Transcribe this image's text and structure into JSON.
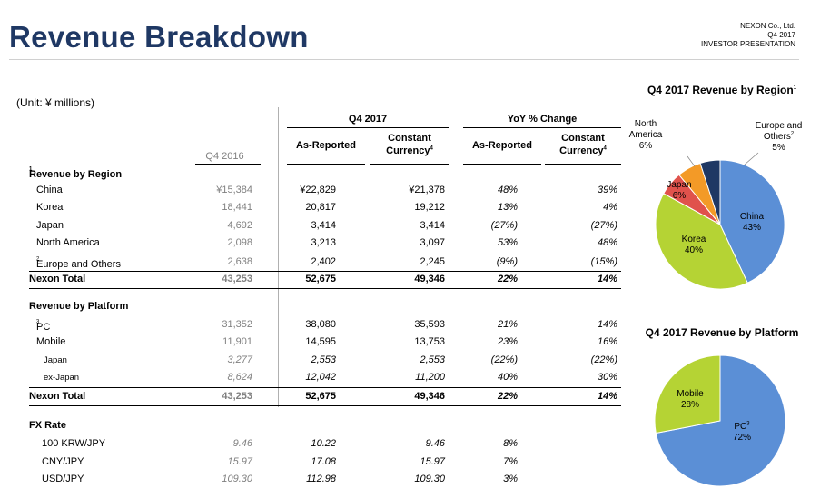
{
  "header": {
    "title": "Revenue Breakdown",
    "company": "NEXON Co., Ltd.",
    "period": "Q4 2017",
    "doc": "INVESTOR PRESENTATION"
  },
  "unit": "(Unit: ¥ millions)",
  "table": {
    "group1": "Q4 2017",
    "group2": "YoY % Change",
    "col_q4_2016": "Q4 2016",
    "col_as_reported": "As-Reported",
    "col_constant": "Constant",
    "col_currency": "Currency",
    "col_currency_sup": "4",
    "col_as_reported2": "As-Reported",
    "col_constant2": "Constant",
    "col_currency2": "Currency",
    "col_currency2_sup": "4",
    "sec_region": "Revenue by Region",
    "sec_region_sup": "1",
    "region_rows": [
      {
        "label": "China",
        "q416": "¥15,384",
        "ar": "¥22,829",
        "cc": "¥21,378",
        "yoy_ar": "48%",
        "yoy_cc": "39%"
      },
      {
        "label": "Korea",
        "q416": "18,441",
        "ar": "20,817",
        "cc": "19,212",
        "yoy_ar": "13%",
        "yoy_cc": "4%"
      },
      {
        "label": "Japan",
        "q416": "4,692",
        "ar": "3,414",
        "cc": "3,414",
        "yoy_ar": "(27%)",
        "yoy_cc": "(27%)"
      },
      {
        "label": "North America",
        "q416": "2,098",
        "ar": "3,213",
        "cc": "3,097",
        "yoy_ar": "53%",
        "yoy_cc": "48%"
      },
      {
        "label": "Europe and Others",
        "sup": "2",
        "q416": "2,638",
        "ar": "2,402",
        "cc": "2,245",
        "yoy_ar": "(9%)",
        "yoy_cc": "(15%)"
      }
    ],
    "total1": {
      "label": "Nexon Total",
      "q416": "43,253",
      "ar": "52,675",
      "cc": "49,346",
      "yoy_ar": "22%",
      "yoy_cc": "14%"
    },
    "sec_platform": "Revenue by Platform",
    "platform_rows": [
      {
        "label": "PC",
        "sup": "3",
        "q416": "31,352",
        "ar": "38,080",
        "cc": "35,593",
        "yoy_ar": "21%",
        "yoy_cc": "14%"
      },
      {
        "label": "Mobile",
        "q416": "11,901",
        "ar": "14,595",
        "cc": "13,753",
        "yoy_ar": "23%",
        "yoy_cc": "16%"
      },
      {
        "label": "Japan",
        "q416": "3,277",
        "ar": "2,553",
        "cc": "2,553",
        "yoy_ar": "(22%)",
        "yoy_cc": "(22%)"
      },
      {
        "label": "ex-Japan",
        "q416": "8,624",
        "ar": "12,042",
        "cc": "11,200",
        "yoy_ar": "40%",
        "yoy_cc": "30%"
      }
    ],
    "total2": {
      "label": "Nexon Total",
      "q416": "43,253",
      "ar": "52,675",
      "cc": "49,346",
      "yoy_ar": "22%",
      "yoy_cc": "14%"
    },
    "sec_fx": "FX Rate",
    "fx_rows": [
      {
        "label": "100 KRW/JPY",
        "q416": "9.46",
        "ar": "10.22",
        "cc": "9.46",
        "yoy_ar": "8%"
      },
      {
        "label": "CNY/JPY",
        "q416": "15.97",
        "ar": "17.08",
        "cc": "15.97",
        "yoy_ar": "7%"
      },
      {
        "label": "USD/JPY",
        "q416": "109.30",
        "ar": "112.98",
        "cc": "109.30",
        "yoy_ar": "3%"
      }
    ]
  },
  "chart_data": [
    {
      "type": "pie",
      "title": "Q4 2017 Revenue by Region",
      "title_sup": "1",
      "slices": [
        {
          "name": "China",
          "value": 43,
          "label": "43%",
          "color": "#5b8fd6"
        },
        {
          "name": "Korea",
          "value": 40,
          "label": "40%",
          "color": "#b5d334"
        },
        {
          "name": "Japan",
          "value": 6,
          "label": "6%",
          "color": "#e0524c"
        },
        {
          "name": "North America",
          "value": 6,
          "label": "6%",
          "color": "#f39a27"
        },
        {
          "name": "Europe and Others",
          "name_sup": "2",
          "value": 5,
          "label": "5%",
          "color": "#1f3864"
        }
      ]
    },
    {
      "type": "pie",
      "title": "Q4 2017 Revenue by Platform",
      "slices": [
        {
          "name": "PC",
          "name_sup": "3",
          "value": 72,
          "label": "72%",
          "color": "#5b8fd6"
        },
        {
          "name": "Mobile",
          "value": 28,
          "label": "28%",
          "color": "#b5d334"
        }
      ]
    }
  ]
}
